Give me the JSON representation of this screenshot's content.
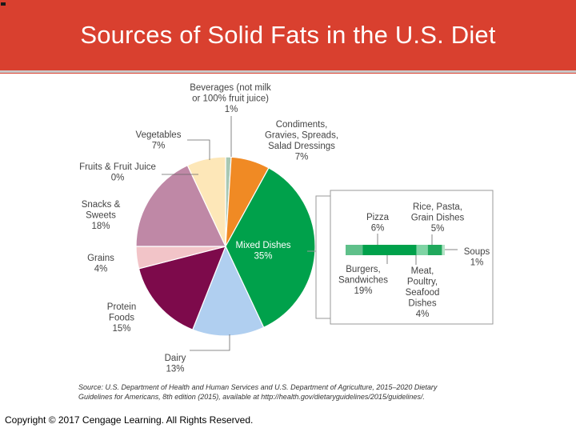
{
  "title": "Sources of Solid Fats in the U.S. Diet",
  "copyright": "Copyright © 2017 Cengage Learning. All Rights Reserved.",
  "source": {
    "line1": "Source: U.S. Department of Health and Human Services and U.S. Department of Agriculture, 2015–2020 Dietary",
    "line2": "Guidelines for Americans, 8th edition (2015), available at http://health.gov/dietaryguidelines/2015/guidelines/."
  },
  "chart_data": {
    "type": "pie",
    "slices": [
      {
        "label": [
          "Beverages (not milk",
          "or 100% fruit juice)"
        ],
        "pct": "1%",
        "value": 1,
        "color": "#a8c8b4"
      },
      {
        "label": [
          "Condiments,",
          "Gravies, Spreads,",
          "Salad Dressings"
        ],
        "pct": "7%",
        "value": 7,
        "color": "#f08a24"
      },
      {
        "label": [
          "Mixed Dishes"
        ],
        "pct": "35%",
        "value": 35,
        "color": "#00a14b"
      },
      {
        "label": [
          "Dairy"
        ],
        "pct": "13%",
        "value": 13,
        "color": "#b0cff0"
      },
      {
        "label": [
          "Protein",
          "Foods"
        ],
        "pct": "15%",
        "value": 15,
        "color": "#7d0a4b"
      },
      {
        "label": [
          "Grains"
        ],
        "pct": "4%",
        "value": 4,
        "color": "#f2c4c8"
      },
      {
        "label": [
          "Snacks &",
          "Sweets"
        ],
        "pct": "18%",
        "value": 18,
        "color": "#bf88a6"
      },
      {
        "label": [
          "Fruits & Fruit Juice"
        ],
        "pct": "0%",
        "value": 0,
        "color": "#f5a9a0"
      },
      {
        "label": [
          "Vegetables"
        ],
        "pct": "7%",
        "value": 7,
        "color": "#fde7b8"
      }
    ],
    "breakdown": {
      "of": "Mixed Dishes",
      "segments": [
        {
          "label": [
            "Pizza"
          ],
          "pct": "6%",
          "value": 6,
          "color": "#5fc08a"
        },
        {
          "label": [
            "Burgers,",
            "Sandwiches"
          ],
          "pct": "19%",
          "value": 19,
          "color": "#00a14b"
        },
        {
          "label": [
            "Meat,",
            "Poultry,",
            "Seafood",
            "Dishes"
          ],
          "pct": "4%",
          "value": 4,
          "color": "#7fd4a4"
        },
        {
          "label": [
            "Rice, Pasta,",
            "Grain Dishes"
          ],
          "pct": "5%",
          "value": 5,
          "color": "#20a85c"
        },
        {
          "label": [
            "Soups"
          ],
          "pct": "1%",
          "value": 1,
          "color": "#b4e3c6"
        }
      ]
    }
  }
}
